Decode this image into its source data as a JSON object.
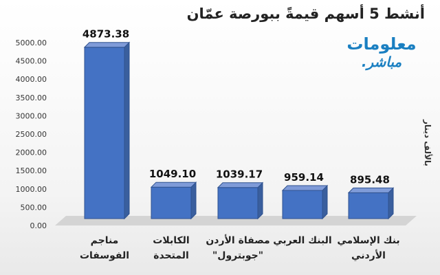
{
  "chart_data": {
    "type": "bar",
    "title": "أنشط 5 أسهم قيمةً ببورصة عمّان",
    "unit_label": "بالألف دينار",
    "logo": {
      "line1": "معلومات",
      "line2": "مباشر."
    },
    "categories": [
      [
        "مناجم",
        "الفوسفات"
      ],
      [
        "الكابلات",
        "المتحدة"
      ],
      [
        "مصفاة الأردن",
        "\"جوبترول\""
      ],
      [
        "البنك العربي"
      ],
      [
        "بنك الإسلامي",
        "الأردني"
      ]
    ],
    "values": [
      4873.38,
      1049.1,
      1039.17,
      959.14,
      895.48
    ],
    "value_labels": [
      "4873.38",
      "1049.10",
      "1039.17",
      "959.14",
      "895.48"
    ],
    "ylim": [
      0,
      5000
    ],
    "yticks": [
      "0.00",
      "500.00",
      "1000.00",
      "1500.00",
      "2000.00",
      "2500.00",
      "3000.00",
      "3500.00",
      "4000.00",
      "4500.00",
      "5000.00"
    ],
    "grid": false,
    "colors": {
      "bar_front": "#4472c4",
      "bar_side": "#3a5f9e",
      "bar_top": "#7f9bd8",
      "bar_edge": "#2f528f",
      "floor": "#d4d4d4"
    }
  }
}
